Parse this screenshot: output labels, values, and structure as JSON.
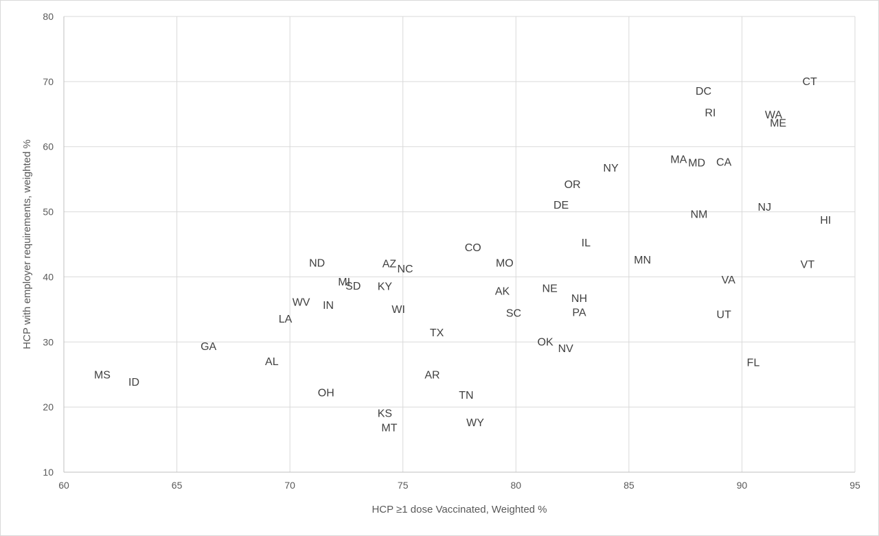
{
  "chart_data": {
    "type": "scatter",
    "title": "",
    "xlabel": "HCP ≥1 dose Vaccinated, Weighted %",
    "ylabel": "HCP with employer requirements, weighted %",
    "xlim": [
      60,
      95
    ],
    "ylim": [
      10,
      80
    ],
    "xticks": [
      60,
      65,
      70,
      75,
      80,
      85,
      90,
      95
    ],
    "yticks": [
      10,
      20,
      30,
      40,
      50,
      60,
      70,
      80
    ],
    "grid": true,
    "marker": "text-label",
    "points": [
      {
        "label": "MS",
        "x": 61.7,
        "y": 25.0
      },
      {
        "label": "ID",
        "x": 63.1,
        "y": 23.9
      },
      {
        "label": "GA",
        "x": 66.4,
        "y": 29.4
      },
      {
        "label": "AL",
        "x": 69.2,
        "y": 27.1
      },
      {
        "label": "LA",
        "x": 69.8,
        "y": 33.6
      },
      {
        "label": "WV",
        "x": 70.5,
        "y": 36.2
      },
      {
        "label": "ND",
        "x": 71.2,
        "y": 42.2
      },
      {
        "label": "IN",
        "x": 71.7,
        "y": 35.7
      },
      {
        "label": "OH",
        "x": 71.6,
        "y": 22.3
      },
      {
        "label": "MI",
        "x": 72.4,
        "y": 39.3
      },
      {
        "label": "SD",
        "x": 72.8,
        "y": 38.7
      },
      {
        "label": "AZ",
        "x": 74.4,
        "y": 42.1
      },
      {
        "label": "NC",
        "x": 75.1,
        "y": 41.3
      },
      {
        "label": "KY",
        "x": 74.2,
        "y": 38.6
      },
      {
        "label": "WI",
        "x": 74.8,
        "y": 35.1
      },
      {
        "label": "KS",
        "x": 74.2,
        "y": 19.1
      },
      {
        "label": "MT",
        "x": 74.4,
        "y": 16.9
      },
      {
        "label": "TX",
        "x": 76.5,
        "y": 31.5
      },
      {
        "label": "AR",
        "x": 76.3,
        "y": 25.0
      },
      {
        "label": "CO",
        "x": 78.1,
        "y": 44.6
      },
      {
        "label": "TN",
        "x": 77.8,
        "y": 21.9
      },
      {
        "label": "WY",
        "x": 78.2,
        "y": 17.7
      },
      {
        "label": "MO",
        "x": 79.5,
        "y": 42.2
      },
      {
        "label": "AK",
        "x": 79.4,
        "y": 37.9
      },
      {
        "label": "SC",
        "x": 79.9,
        "y": 34.5
      },
      {
        "label": "OK",
        "x": 81.3,
        "y": 30.1
      },
      {
        "label": "NE",
        "x": 81.5,
        "y": 38.3
      },
      {
        "label": "NV",
        "x": 82.2,
        "y": 29.1
      },
      {
        "label": "NH",
        "x": 82.8,
        "y": 36.8
      },
      {
        "label": "PA",
        "x": 82.8,
        "y": 34.6
      },
      {
        "label": "DE",
        "x": 82.0,
        "y": 51.1
      },
      {
        "label": "OR",
        "x": 82.5,
        "y": 54.3
      },
      {
        "label": "IL",
        "x": 83.1,
        "y": 45.3
      },
      {
        "label": "NY",
        "x": 84.2,
        "y": 56.8
      },
      {
        "label": "MN",
        "x": 85.6,
        "y": 42.7
      },
      {
        "label": "MA",
        "x": 87.2,
        "y": 58.1
      },
      {
        "label": "MD",
        "x": 88.0,
        "y": 57.6
      },
      {
        "label": "NM",
        "x": 88.1,
        "y": 49.7
      },
      {
        "label": "DC",
        "x": 88.3,
        "y": 68.6
      },
      {
        "label": "RI",
        "x": 88.6,
        "y": 65.3
      },
      {
        "label": "CA",
        "x": 89.2,
        "y": 57.7
      },
      {
        "label": "VA",
        "x": 89.4,
        "y": 39.6
      },
      {
        "label": "UT",
        "x": 89.2,
        "y": 34.3
      },
      {
        "label": "FL",
        "x": 90.5,
        "y": 26.9
      },
      {
        "label": "NJ",
        "x": 91.0,
        "y": 50.8
      },
      {
        "label": "WA",
        "x": 91.4,
        "y": 65.0
      },
      {
        "label": "ME",
        "x": 91.6,
        "y": 63.7
      },
      {
        "label": "CT",
        "x": 93.0,
        "y": 70.1
      },
      {
        "label": "VT",
        "x": 92.9,
        "y": 42.0
      },
      {
        "label": "HI",
        "x": 93.7,
        "y": 48.8
      }
    ]
  }
}
